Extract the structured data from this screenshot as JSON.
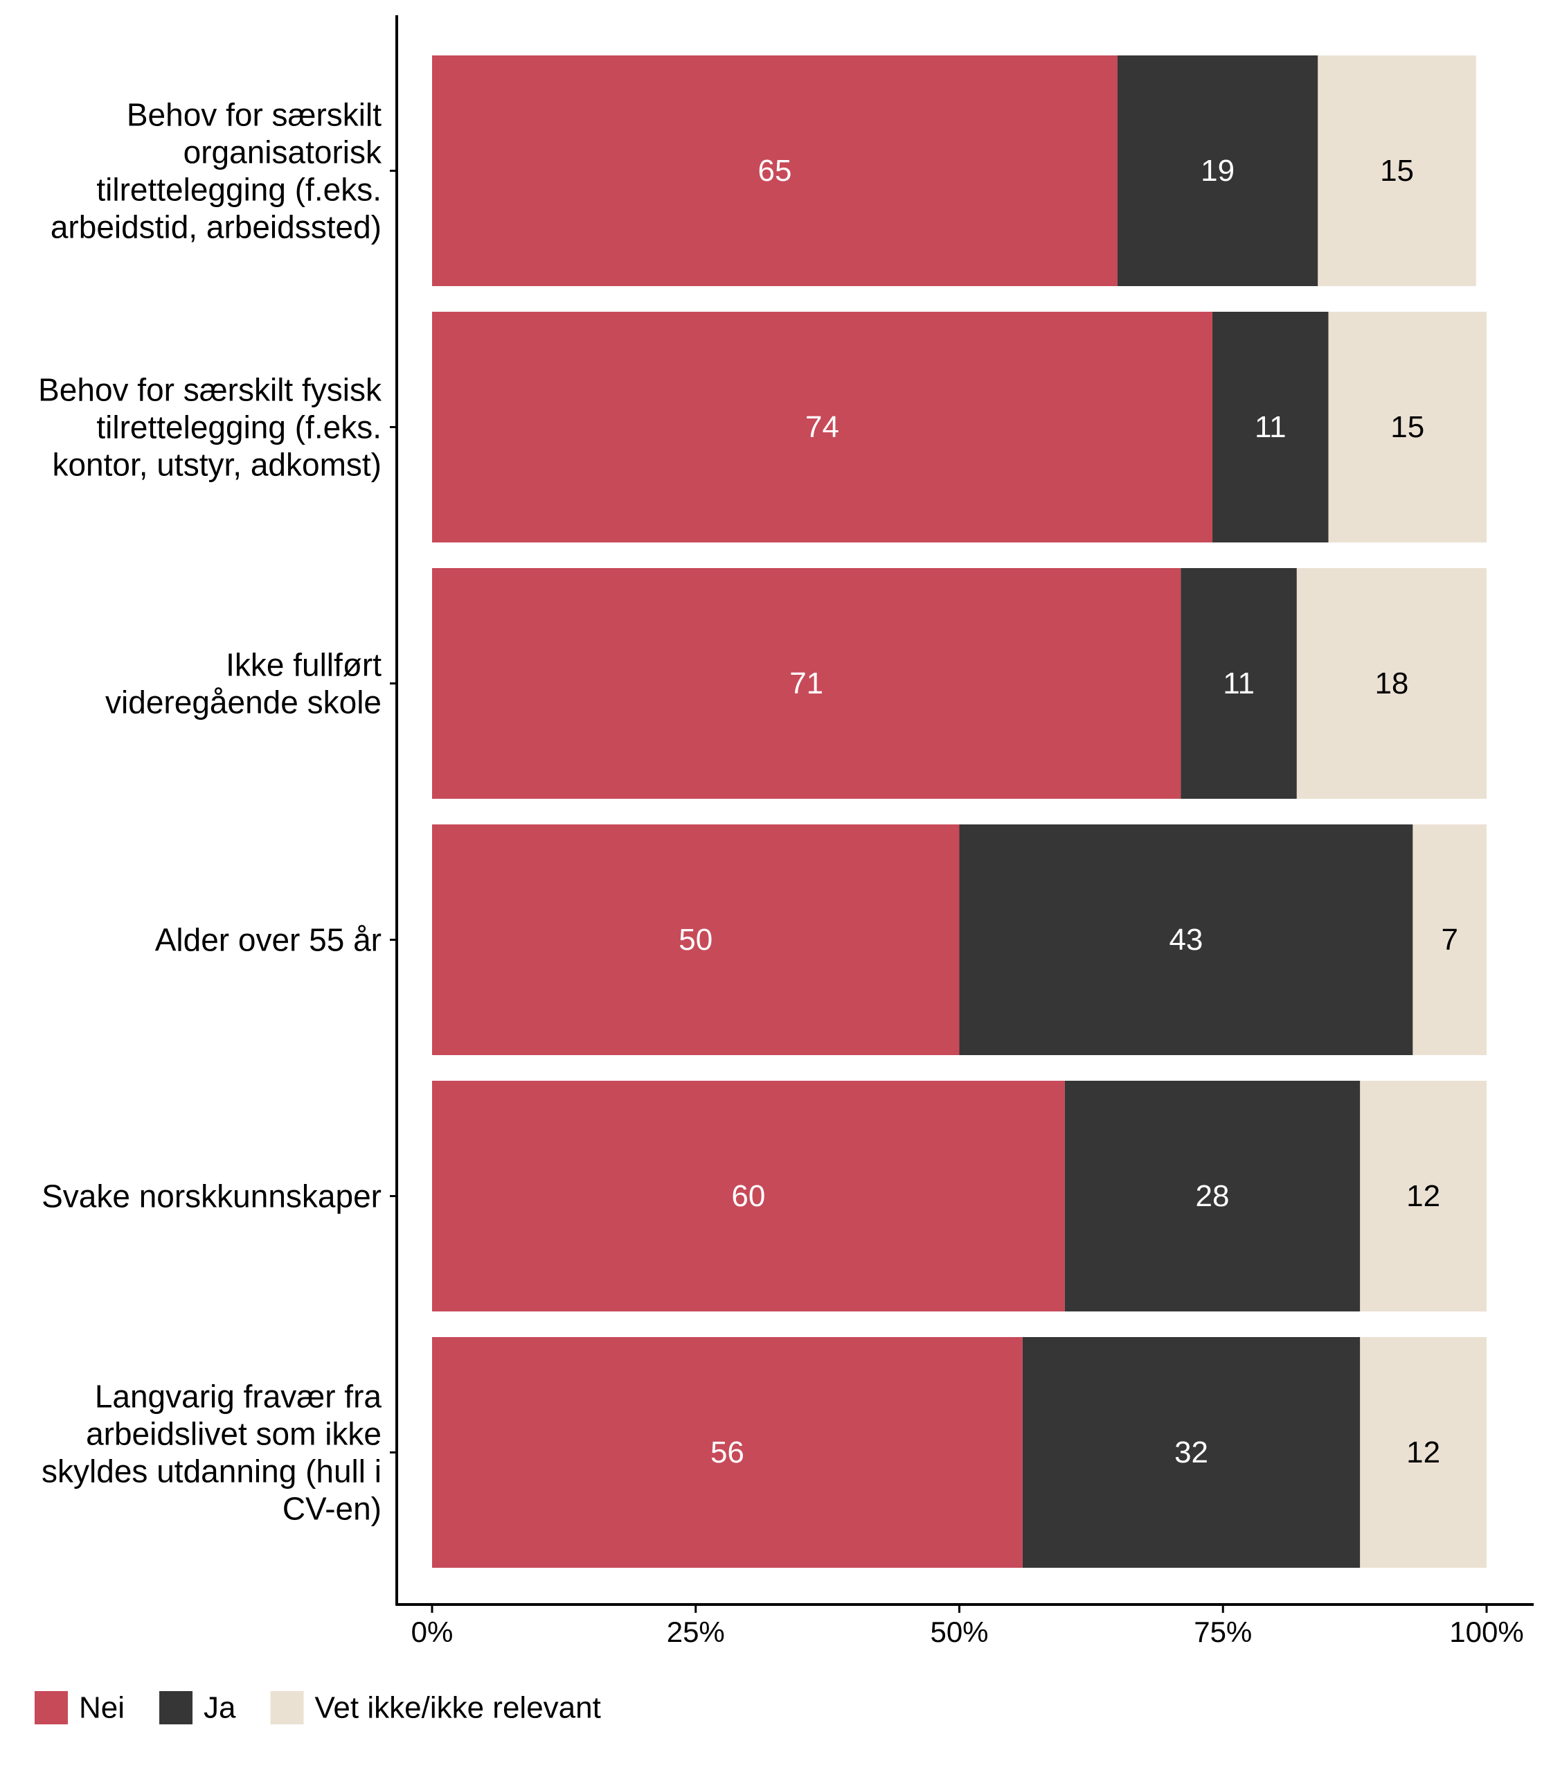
{
  "chart_data": {
    "type": "bar",
    "orientation": "horizontal",
    "stacked": true,
    "percent": true,
    "categories": [
      [
        "Behov for særskilt",
        "organisatorisk",
        "tilrettelegging (f.eks.",
        "arbeidstid, arbeidssted)"
      ],
      [
        "Behov for særskilt fysisk",
        "tilrettelegging (f.eks.",
        "kontor, utstyr, adkomst)"
      ],
      [
        "Ikke fullført",
        "videregående skole"
      ],
      [
        "Alder over 55 år"
      ],
      [
        "Svake norskkunnskaper"
      ],
      [
        "Langvarig fravær fra",
        "arbeidslivet som ikke",
        "skyldes utdanning (hull i",
        "CV-en)"
      ]
    ],
    "series": [
      {
        "name": "Nei",
        "color": "#c74a59",
        "label_color": "#ffffff",
        "values": [
          65,
          74,
          71,
          50,
          60,
          56
        ]
      },
      {
        "name": "Ja",
        "color": "#363636",
        "label_color": "#ffffff",
        "values": [
          19,
          11,
          11,
          43,
          28,
          32
        ]
      },
      {
        "name": "Vet ikke/ikke relevant",
        "color": "#ebe1d3",
        "label_color": "#000000",
        "values": [
          15,
          15,
          18,
          7,
          12,
          12
        ]
      }
    ],
    "x_ticks": [
      "0%",
      "25%",
      "50%",
      "75%",
      "100%"
    ],
    "x_tick_values": [
      0,
      25,
      50,
      75,
      100
    ],
    "xlim": [
      0,
      100
    ],
    "grid": false,
    "legend_position": "bottom-left"
  }
}
